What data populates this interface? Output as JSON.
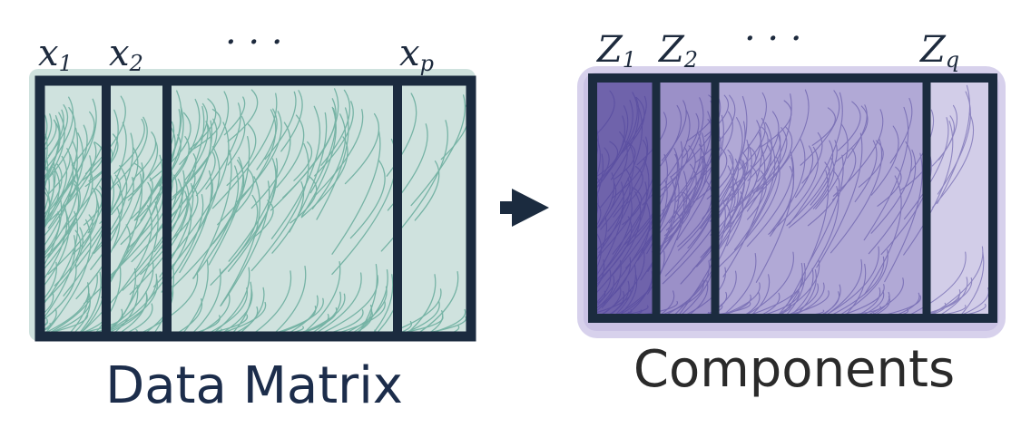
{
  "left_panel": {
    "column_labels": [
      "x",
      "x",
      "· · ·",
      "x"
    ],
    "column_subscripts": [
      "1",
      "2",
      "",
      "p"
    ],
    "caption": "Data Matrix"
  },
  "right_panel": {
    "column_labels": [
      "Z",
      "Z",
      "· · ·",
      "Z"
    ],
    "column_subscripts": [
      "1",
      "2",
      "",
      "q"
    ],
    "caption": "Components"
  },
  "arrow": {
    "icon": "right-arrow-icon"
  },
  "colors": {
    "frame": "#1b2b3f",
    "data_fill": "#cfe2de",
    "data_hatch": "#2f8e78",
    "data_caption": "#1c2d4b",
    "comp_fill_1": "#6f63ab",
    "comp_fill_2": "#9b90c8",
    "comp_fill_3": "#b1a9d6",
    "comp_fill_4": "#d2cde8",
    "comp_halo": "#c9c1e6",
    "comp_hatch": "#4a3f9a",
    "comp_caption": "#2a2a2a"
  }
}
